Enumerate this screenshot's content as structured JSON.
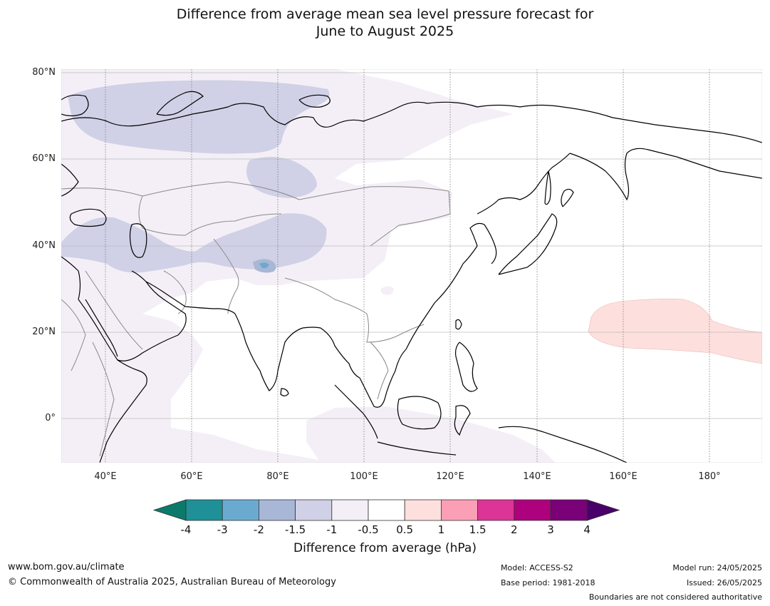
{
  "title": {
    "line1": "Difference from average mean sea level pressure forecast for",
    "line2": "June to August 2025"
  },
  "map": {
    "lat_labels": [
      "80°N",
      "60°N",
      "40°N",
      "20°N",
      "0°"
    ],
    "lon_labels": [
      "40°E",
      "60°E",
      "80°E",
      "100°E",
      "120°E",
      "140°E",
      "160°E",
      "180°"
    ]
  },
  "colorbar": {
    "title": "Difference from average (hPa)",
    "tick_labels": [
      "-4",
      "-3",
      "-2",
      "-1.5",
      "-1",
      "-0.5",
      "0.5",
      "1",
      "1.5",
      "2",
      "3",
      "4"
    ],
    "colors": [
      "#0c7a6a",
      "#1f9097",
      "#6aaad1",
      "#a8b7d5",
      "#d0d1e6",
      "#f4eff7",
      "#ffffff",
      "#fde0dd",
      "#fa9fb5",
      "#dd3497",
      "#ae017e",
      "#7a0177",
      "#49006a"
    ]
  },
  "footer": {
    "website": "www.bom.gov.au/climate",
    "copyright": "© Commonwealth of Australia 2025, Australian Bureau of Meteorology",
    "model": "Model: ACCESS-S2",
    "base_period": "Base period: 1981-2018",
    "model_run": "Model run: 24/05/2025",
    "issued": "Issued: 26/05/2025",
    "boundaries": "Boundaries are not considered authoritative"
  }
}
